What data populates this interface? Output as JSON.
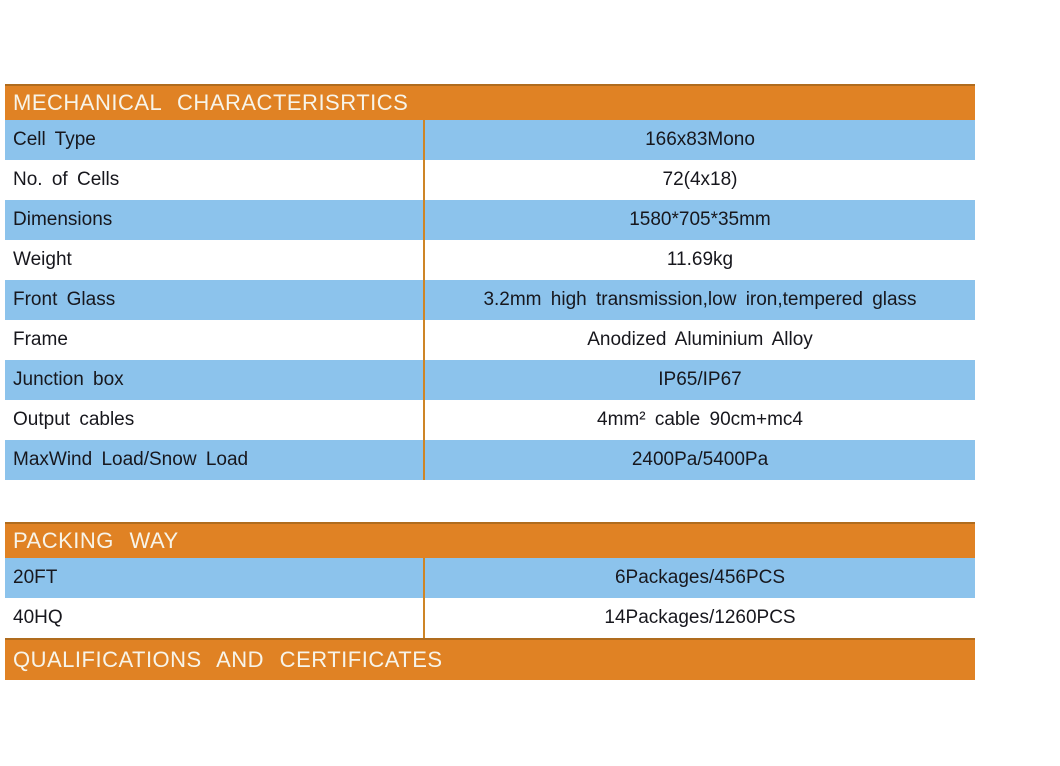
{
  "colors": {
    "header_bg": "#E08224",
    "header_text": "#F7F4E9",
    "row_blue": "#8CC3EC",
    "row_white": "#FFFFFF",
    "cell_text": "#17171D",
    "column_divider": "#CE8526"
  },
  "sections": [
    {
      "title": "MECHANICAL CHARACTERISRTICS",
      "rows": [
        {
          "label": "Cell Type",
          "value": "166x83Mono"
        },
        {
          "label": "No. of Cells",
          "value": "72(4x18)"
        },
        {
          "label": "Dimensions",
          "value": "1580*705*35mm"
        },
        {
          "label": "Weight",
          "value": "11.69kg"
        },
        {
          "label": "Front Glass",
          "value": "3.2mm high transmission,low iron,tempered glass"
        },
        {
          "label": "Frame",
          "value": "Anodized Aluminium Alloy"
        },
        {
          "label": "Junction box",
          "value": "IP65/IP67"
        },
        {
          "label": "Output cables",
          "value": "4mm² cable 90cm+mc4"
        },
        {
          "label": "MaxWind Load/Snow Load",
          "value": "2400Pa/5400Pa"
        }
      ]
    },
    {
      "title": "PACKING WAY",
      "rows": [
        {
          "label": "20FT",
          "value": "6Packages/456PCS"
        },
        {
          "label": "40HQ",
          "value": "14Packages/1260PCS"
        }
      ]
    },
    {
      "title": "QUALIFICATIONS AND CERTIFICATES",
      "rows": []
    }
  ]
}
